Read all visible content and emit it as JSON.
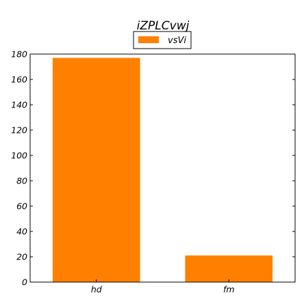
{
  "chart_data": {
    "type": "bar",
    "title": "iZPLCvwj",
    "categories": [
      "hd",
      "fm"
    ],
    "series": [
      {
        "name": "vsVi",
        "values": [
          177,
          21
        ],
        "color": "#ff8000"
      }
    ],
    "ylim": [
      0,
      180
    ],
    "yticks": [
      0,
      20,
      40,
      60,
      80,
      100,
      120,
      140,
      160,
      180
    ],
    "legend": "top-center",
    "grid": false
  }
}
